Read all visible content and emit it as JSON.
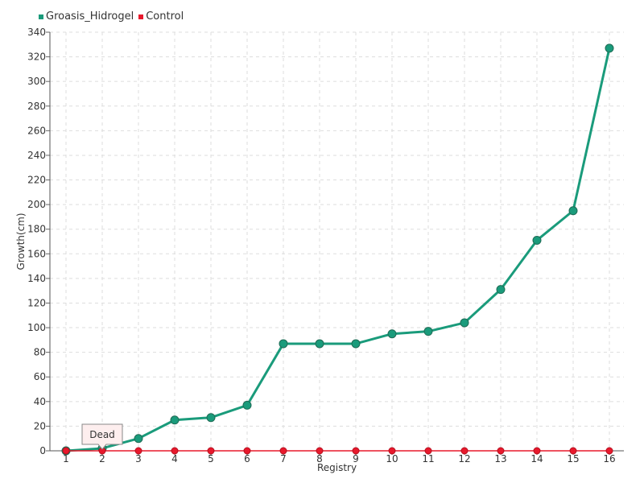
{
  "chart_data": {
    "type": "line",
    "title": "",
    "xlabel": "Registry",
    "ylabel": "Growth(cm)",
    "categories": [
      "1",
      "2",
      "3",
      "4",
      "5",
      "6",
      "7",
      "8",
      "9",
      "10",
      "11",
      "12",
      "13",
      "14",
      "15",
      "16"
    ],
    "ylim": [
      0,
      340
    ],
    "yticks": [
      0,
      20,
      40,
      60,
      80,
      100,
      120,
      140,
      160,
      180,
      200,
      220,
      240,
      260,
      280,
      300,
      320,
      340
    ],
    "grid": true,
    "legend_position": "top-left",
    "series": [
      {
        "name": "Groasis_Hidrogel",
        "color": "#1a9b7b",
        "values": [
          0,
          2,
          10,
          25,
          27,
          37,
          87,
          87,
          87,
          95,
          97,
          104,
          131,
          171,
          195,
          327
        ]
      },
      {
        "name": "Control",
        "color": "#e8192c",
        "values": [
          0,
          0,
          0,
          0,
          0,
          0,
          0,
          0,
          0,
          0,
          0,
          0,
          0,
          0,
          0,
          0
        ]
      }
    ],
    "annotations": [
      {
        "text": "Dead",
        "category": "2",
        "series": "Control"
      }
    ]
  }
}
